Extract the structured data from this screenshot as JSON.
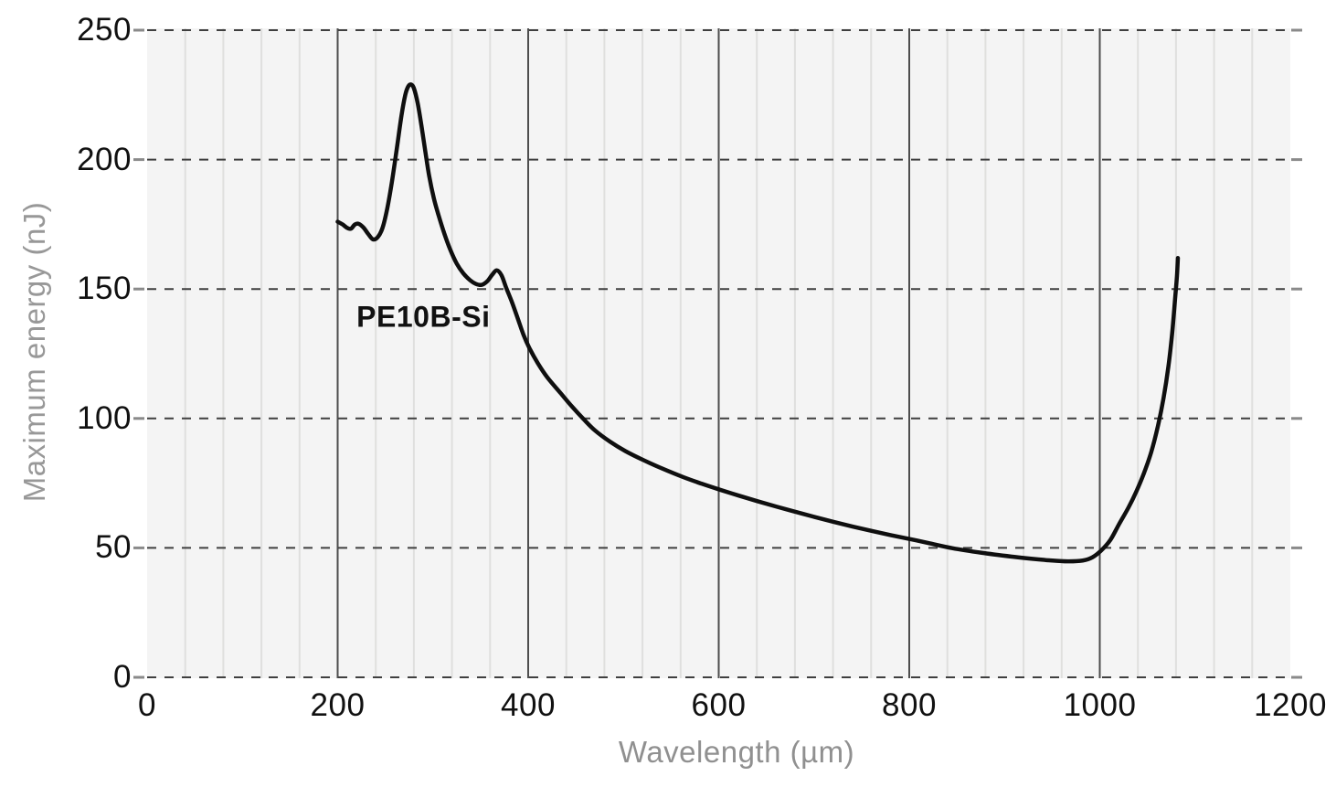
{
  "chart_data": {
    "type": "line",
    "title": "",
    "xlabel": "Wavelength (µm)",
    "ylabel": "Maximum energy (nJ)",
    "xlim": [
      0,
      1200
    ],
    "ylim": [
      0,
      250
    ],
    "x_ticks": [
      0,
      200,
      400,
      600,
      800,
      1000,
      1200
    ],
    "y_ticks": [
      0,
      50,
      100,
      150,
      200,
      250
    ],
    "x_minor_step": 40,
    "grid": {
      "x_major": "solid dark vertical lines at 200..1000",
      "x_minor": "light solid vertical lines every 40",
      "y_major": "dark dashed horizontal lines every 50",
      "legend": "none"
    },
    "annotations": [
      {
        "text": "PE10B-Si",
        "x": 290,
        "y": 139
      }
    ],
    "series": [
      {
        "name": "PE10B-Si",
        "points": [
          [
            200,
            176
          ],
          [
            205,
            175
          ],
          [
            210,
            173.6
          ],
          [
            214,
            173.3
          ],
          [
            218,
            174.9
          ],
          [
            222,
            175.2
          ],
          [
            227,
            173.8
          ],
          [
            232,
            171.3
          ],
          [
            237,
            169.2
          ],
          [
            242,
            170
          ],
          [
            247,
            173.5
          ],
          [
            252,
            181
          ],
          [
            257,
            191.5
          ],
          [
            262,
            204
          ],
          [
            267,
            217
          ],
          [
            271,
            225
          ],
          [
            274,
            228.2
          ],
          [
            277,
            229
          ],
          [
            280,
            227.6
          ],
          [
            284,
            221.8
          ],
          [
            288,
            213
          ],
          [
            292,
            203.2
          ],
          [
            296,
            193.8
          ],
          [
            301,
            185
          ],
          [
            306,
            178.4
          ],
          [
            312,
            171.4
          ],
          [
            318,
            165.4
          ],
          [
            325,
            159.8
          ],
          [
            332,
            156
          ],
          [
            339,
            153.4
          ],
          [
            345,
            152
          ],
          [
            351,
            151.6
          ],
          [
            357,
            153
          ],
          [
            362,
            155.4
          ],
          [
            367,
            157.2
          ],
          [
            372,
            155.3
          ],
          [
            377,
            150.4
          ],
          [
            383,
            144.9
          ],
          [
            389,
            138.7
          ],
          [
            395,
            132.4
          ],
          [
            401,
            127.4
          ],
          [
            410,
            121.4
          ],
          [
            420,
            115.9
          ],
          [
            434,
            109.8
          ],
          [
            446,
            104.6
          ],
          [
            458,
            99.8
          ],
          [
            470,
            95.4
          ],
          [
            486,
            91
          ],
          [
            502,
            87.4
          ],
          [
            521,
            83.9
          ],
          [
            541,
            80.6
          ],
          [
            563,
            77.3
          ],
          [
            582,
            74.8
          ],
          [
            601,
            72.5
          ],
          [
            621,
            70.2
          ],
          [
            641,
            68
          ],
          [
            661,
            65.9
          ],
          [
            681,
            63.9
          ],
          [
            701,
            61.9
          ],
          [
            721,
            60
          ],
          [
            741,
            58.2
          ],
          [
            761,
            56.5
          ],
          [
            781,
            54.9
          ],
          [
            801,
            53.4
          ],
          [
            821,
            51.8
          ],
          [
            845,
            49.9
          ],
          [
            876,
            48.1
          ],
          [
            908,
            46.6
          ],
          [
            928,
            45.8
          ],
          [
            947,
            45.2
          ],
          [
            966,
            44.8
          ],
          [
            982,
            45.1
          ],
          [
            992,
            46.3
          ],
          [
            1001,
            48.8
          ],
          [
            1011,
            53
          ],
          [
            1020,
            59
          ],
          [
            1030,
            65.5
          ],
          [
            1038,
            71.5
          ],
          [
            1046,
            78.5
          ],
          [
            1054,
            87
          ],
          [
            1061,
            97
          ],
          [
            1067,
            108
          ],
          [
            1072,
            120
          ],
          [
            1076,
            133
          ],
          [
            1079,
            146
          ],
          [
            1081,
            155
          ],
          [
            1082,
            162
          ]
        ]
      }
    ]
  },
  "colors": {
    "page_bg": "#ffffff",
    "plot_bg": "#f4f4f4",
    "minor_grid": "#dfdfde",
    "major_grid": "#4d4d4d",
    "dashed_grid": "#3f3f3f",
    "outer_tick": "#8a8a8a",
    "curve": "#0f0f0f",
    "tick_label": "#111111",
    "axis_title": "#949494"
  }
}
